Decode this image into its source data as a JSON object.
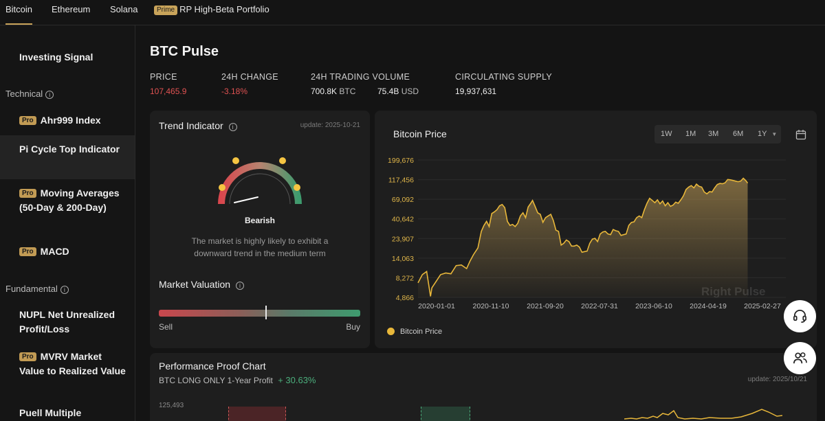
{
  "tabs": [
    {
      "label": "Bitcoin"
    },
    {
      "label": "Ethereum"
    },
    {
      "label": "Solana"
    },
    {
      "badge": "Prime",
      "label": "RP High-Beta Portfolio"
    }
  ],
  "sidebar": {
    "investing_signal": "Investing Signal",
    "technical_label": "Technical",
    "fundamental_label": "Fundamental",
    "pro_badge": "Pro",
    "items": [
      {
        "label": "Ahr999 Index"
      },
      {
        "label": "Pi Cycle Top Indicator"
      },
      {
        "label": "Moving Averages (50-Day & 200-Day)"
      },
      {
        "label": "MACD"
      },
      {
        "label": "NUPL Net Unrealized Profit/Loss"
      },
      {
        "label": "MVRV Market Value to Realized Value"
      },
      {
        "label": "Puell Multiple"
      }
    ]
  },
  "main": {
    "title": "BTC Pulse",
    "stats": {
      "price_label": "PRICE",
      "price_value": "107,465.9",
      "change_label": "24H CHANGE",
      "change_value": "-3.18%",
      "volume_label": "24H TRADING VOLUME",
      "volume_btc": "700.8K",
      "volume_btc_unit": "BTC",
      "volume_usd": "75.4B",
      "volume_usd_unit": "USD",
      "supply_label": "CIRCULATING SUPPLY",
      "supply_value": "19,937,631"
    }
  },
  "trend": {
    "title": "Trend Indicator",
    "update": "update: 2025-10-21",
    "state": "Bearish",
    "description_line1": "The market is highly likely to exhibit a",
    "description_line2": "downward trend in the medium term"
  },
  "valuation": {
    "title": "Market Valuation",
    "sell": "Sell",
    "buy": "Buy",
    "marker_fraction": 0.53
  },
  "price_chart": {
    "range_buttons": [
      "1W",
      "1M",
      "3M",
      "6M",
      "1Y"
    ],
    "legend": "Bitcoin Price",
    "watermark": "Right Pulse"
  },
  "performance": {
    "title": "Performance Proof Chart",
    "subtitle": "BTC LONG ONLY 1-Year Profit",
    "profit": "+ 30.63%",
    "update": "update: 2025/10/21",
    "y_tick": "125,493"
  },
  "colors": {
    "accent": "#c9a45a",
    "line": "#e8b73a",
    "red": "#e05252",
    "green": "#4caf7d"
  },
  "chart_data": {
    "type": "area",
    "title": "Bitcoin Price",
    "scale": "log",
    "ylim": [
      4866,
      199676
    ],
    "y_ticks": [
      4866,
      8272,
      14063,
      23907,
      40642,
      69092,
      117456,
      199676
    ],
    "y_tick_labels": [
      "4,866",
      "8,272",
      "14,063",
      "23,907",
      "40,642",
      "69,092",
      "117,456",
      "199,676"
    ],
    "x_tick_labels": [
      "2020-01-01",
      "2020-11-10",
      "2021-09-20",
      "2022-07-31",
      "2023-06-10",
      "2024-04-19",
      "2025-02-27"
    ],
    "x_range_days": [
      0,
      2120
    ],
    "series": [
      {
        "name": "Bitcoin Price",
        "points": [
          [
            0,
            7200
          ],
          [
            25,
            9000
          ],
          [
            50,
            9800
          ],
          [
            72,
            5000
          ],
          [
            80,
            6300
          ],
          [
            110,
            7800
          ],
          [
            130,
            9000
          ],
          [
            160,
            9400
          ],
          [
            190,
            9200
          ],
          [
            220,
            11500
          ],
          [
            250,
            11700
          ],
          [
            280,
            10600
          ],
          [
            300,
            13000
          ],
          [
            320,
            15500
          ],
          [
            345,
            18500
          ],
          [
            365,
            29000
          ],
          [
            380,
            34000
          ],
          [
            395,
            38000
          ],
          [
            410,
            33000
          ],
          [
            425,
            47000
          ],
          [
            440,
            49000
          ],
          [
            455,
            52000
          ],
          [
            470,
            58000
          ],
          [
            485,
            60000
          ],
          [
            500,
            55000
          ],
          [
            515,
            38000
          ],
          [
            530,
            34000
          ],
          [
            545,
            35000
          ],
          [
            560,
            33000
          ],
          [
            575,
            36000
          ],
          [
            590,
            44000
          ],
          [
            605,
            48000
          ],
          [
            620,
            42000
          ],
          [
            635,
            56000
          ],
          [
            650,
            62000
          ],
          [
            660,
            67000
          ],
          [
            675,
            57000
          ],
          [
            690,
            48000
          ],
          [
            705,
            46000
          ],
          [
            720,
            37000
          ],
          [
            735,
            42000
          ],
          [
            750,
            44000
          ],
          [
            765,
            46000
          ],
          [
            780,
            39000
          ],
          [
            795,
            30000
          ],
          [
            810,
            29000
          ],
          [
            825,
            20000
          ],
          [
            840,
            21000
          ],
          [
            855,
            23000
          ],
          [
            870,
            22000
          ],
          [
            885,
            19500
          ],
          [
            900,
            19500
          ],
          [
            915,
            20000
          ],
          [
            930,
            19000
          ],
          [
            945,
            16500
          ],
          [
            960,
            16800
          ],
          [
            975,
            17000
          ],
          [
            990,
            21000
          ],
          [
            1005,
            23500
          ],
          [
            1020,
            24000
          ],
          [
            1035,
            22000
          ],
          [
            1050,
            27000
          ],
          [
            1065,
            28500
          ],
          [
            1080,
            29000
          ],
          [
            1095,
            27000
          ],
          [
            1110,
            26500
          ],
          [
            1125,
            30500
          ],
          [
            1140,
            29500
          ],
          [
            1155,
            29000
          ],
          [
            1170,
            26000
          ],
          [
            1185,
            26500
          ],
          [
            1200,
            27000
          ],
          [
            1215,
            34000
          ],
          [
            1230,
            37000
          ],
          [
            1245,
            37500
          ],
          [
            1260,
            42000
          ],
          [
            1275,
            44000
          ],
          [
            1290,
            42000
          ],
          [
            1305,
            52000
          ],
          [
            1320,
            62000
          ],
          [
            1335,
            71000
          ],
          [
            1350,
            67000
          ],
          [
            1365,
            63000
          ],
          [
            1380,
            68000
          ],
          [
            1395,
            61000
          ],
          [
            1410,
            66000
          ],
          [
            1425,
            58000
          ],
          [
            1440,
            63000
          ],
          [
            1455,
            57000
          ],
          [
            1470,
            59000
          ],
          [
            1485,
            64000
          ],
          [
            1500,
            62000
          ],
          [
            1515,
            68000
          ],
          [
            1530,
            76000
          ],
          [
            1545,
            90000
          ],
          [
            1560,
            96000
          ],
          [
            1575,
            100000
          ],
          [
            1590,
            94000
          ],
          [
            1605,
            104000
          ],
          [
            1620,
            98000
          ],
          [
            1635,
            96000
          ],
          [
            1650,
            84000
          ],
          [
            1665,
            80000
          ],
          [
            1680,
            85000
          ],
          [
            1695,
            84000
          ],
          [
            1710,
            94000
          ],
          [
            1725,
            103000
          ],
          [
            1740,
            106000
          ],
          [
            1755,
            105000
          ],
          [
            1770,
            108000
          ],
          [
            1785,
            118000
          ],
          [
            1800,
            117000
          ],
          [
            1815,
            115000
          ],
          [
            1830,
            113000
          ],
          [
            1845,
            111000
          ],
          [
            1860,
            113000
          ],
          [
            1875,
            122000
          ],
          [
            1890,
            114000
          ],
          [
            1900,
            107000
          ]
        ]
      }
    ]
  }
}
